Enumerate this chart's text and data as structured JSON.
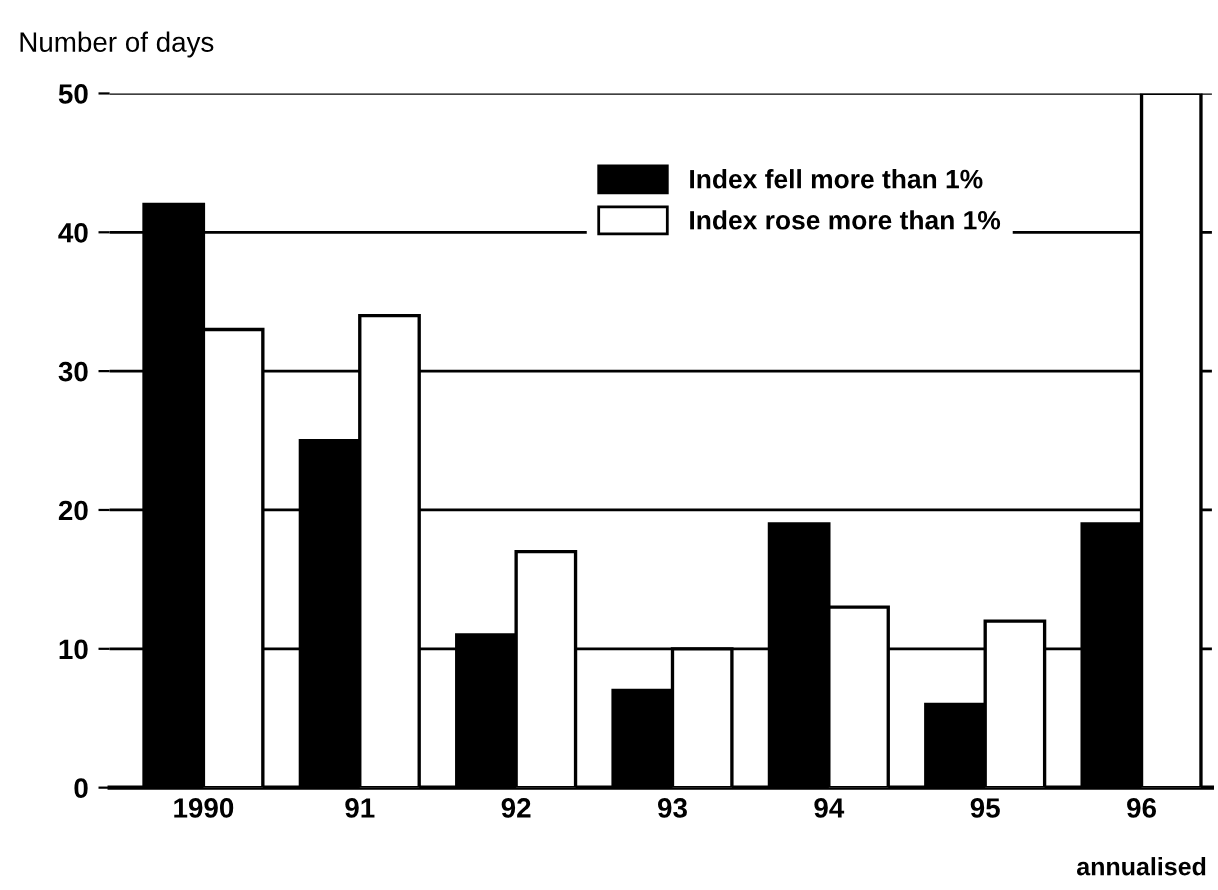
{
  "chart_data": {
    "type": "bar",
    "ylabel": "Number of days",
    "categories": [
      "1990",
      "91",
      "92",
      "93",
      "94",
      "95",
      "96"
    ],
    "series": [
      {
        "name": "Index fell more than 1%",
        "color": "#000000",
        "values": [
          42,
          25,
          11,
          7,
          19,
          6,
          19
        ]
      },
      {
        "name": "Index rose more than 1%",
        "color": "#ffffff",
        "values": [
          33,
          34,
          17,
          10,
          13,
          12,
          50
        ]
      }
    ],
    "ylim": [
      0,
      50
    ],
    "yticks": [
      0,
      10,
      20,
      30,
      40,
      50
    ],
    "grid": "y",
    "legend": "top right",
    "annotations": [
      "annualised"
    ]
  }
}
